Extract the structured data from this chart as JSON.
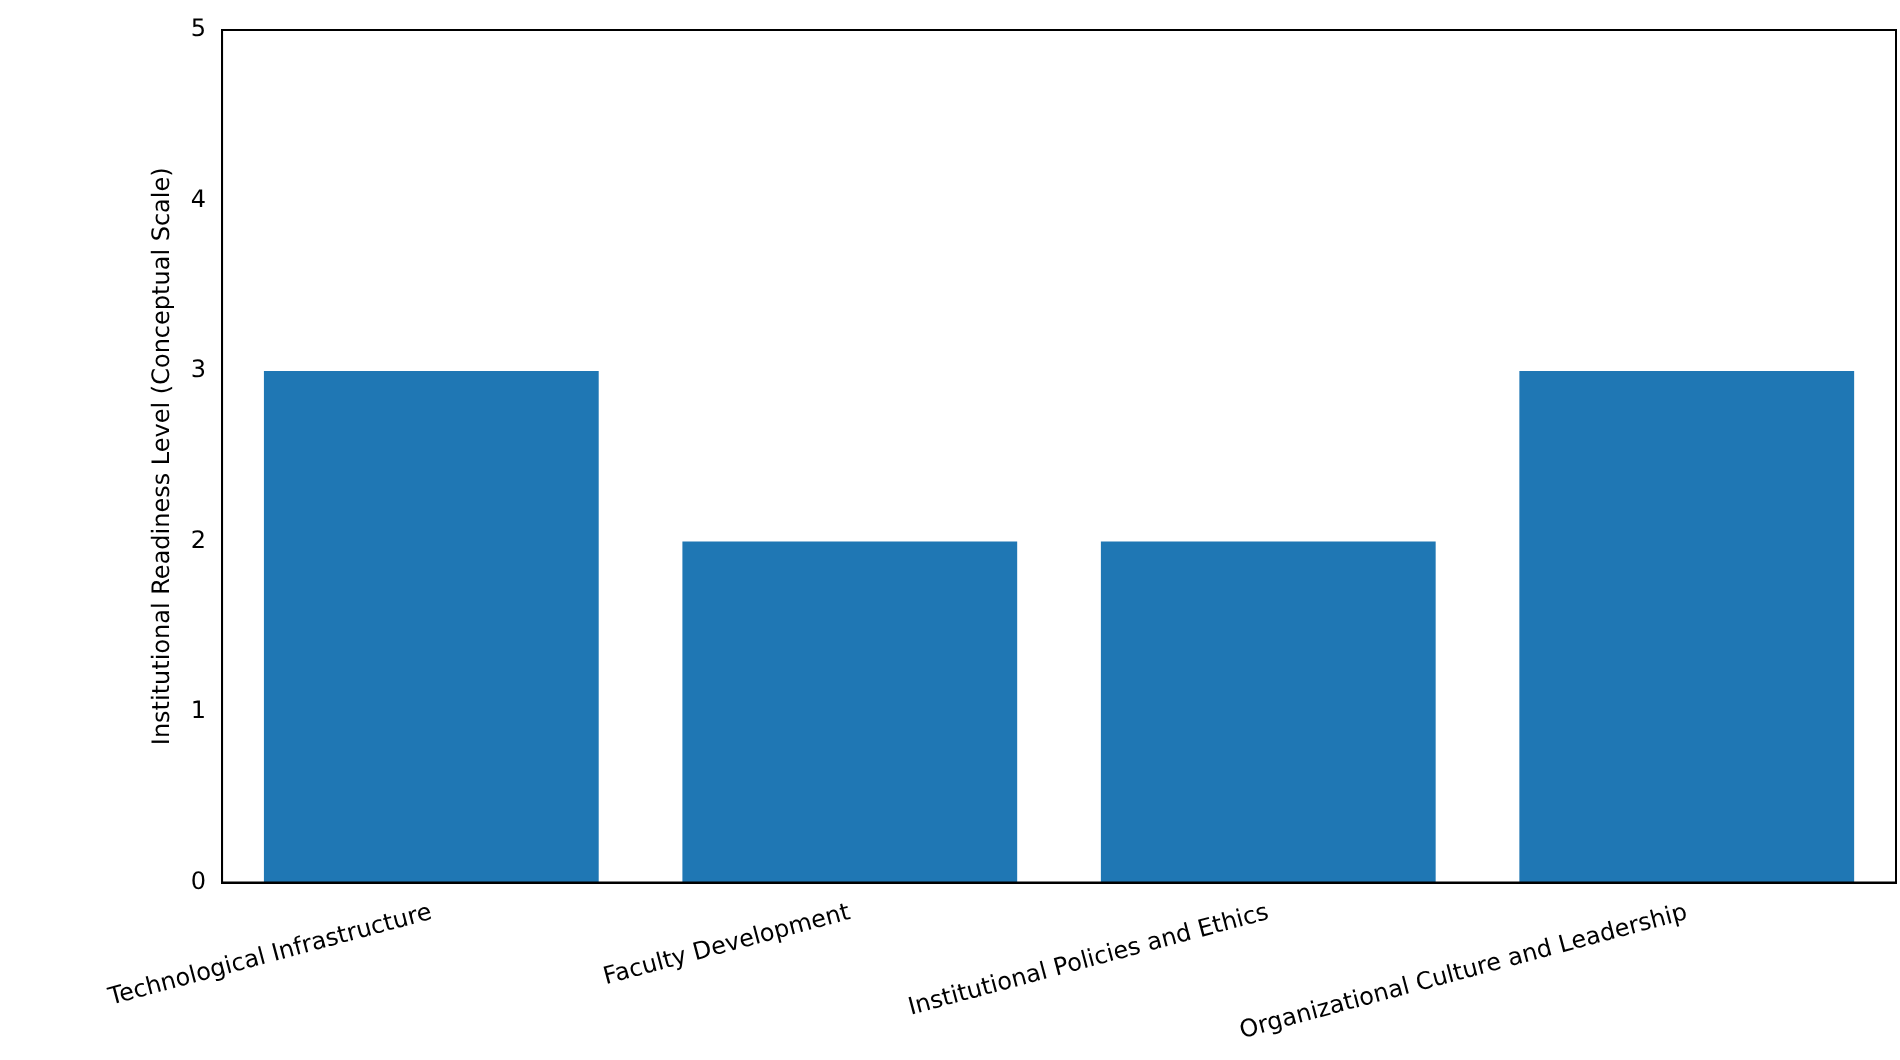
{
  "chart_data": {
    "type": "bar",
    "ylabel": "Institutional Readiness Level (Conceptual Scale)",
    "categories": [
      "Technological Infrastructure",
      "Faculty Development",
      "Institutional Policies and Ethics",
      "Organizational Culture and Leadership"
    ],
    "values": [
      3,
      2,
      2,
      3
    ],
    "color": "#1f77b4",
    "ylim": [
      0,
      5
    ],
    "yticks": [
      0,
      1,
      2,
      3,
      4,
      5
    ],
    "grid": false,
    "legend": false
  }
}
